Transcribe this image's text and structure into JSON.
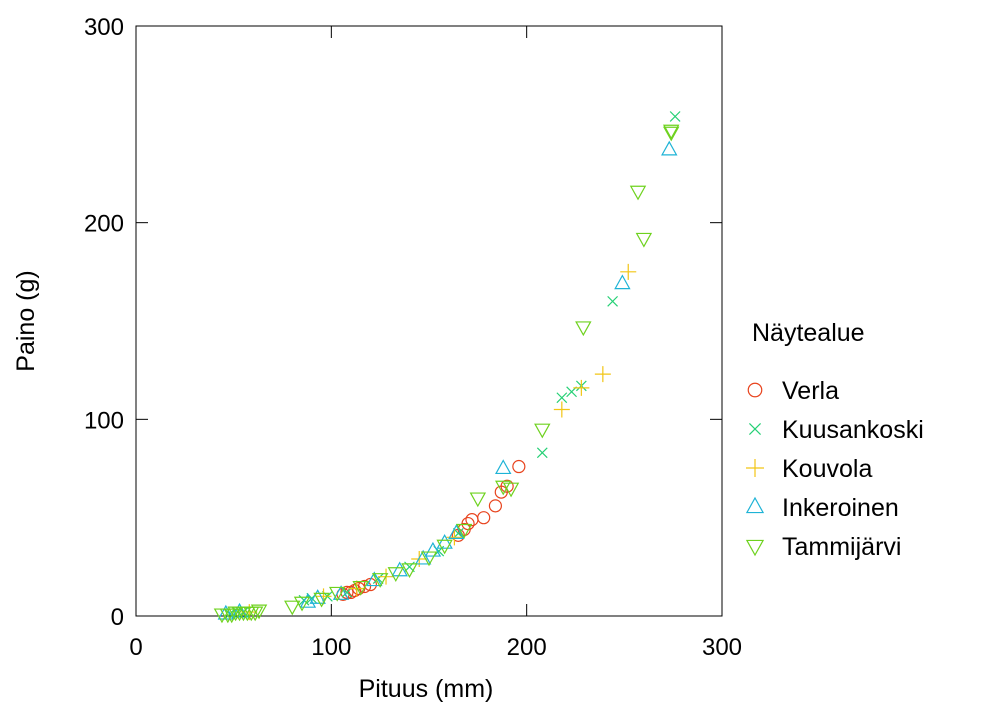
{
  "chart_data": {
    "type": "scatter",
    "title": "",
    "xlabel": "Pituus (mm)",
    "ylabel": "Paino (g)",
    "xlim": [
      0,
      300
    ],
    "ylim": [
      0,
      300
    ],
    "xticks": [
      0,
      100,
      200,
      300
    ],
    "yticks": [
      0,
      100,
      200,
      300
    ],
    "grid": false,
    "legend": {
      "title": "Näytealue",
      "placement": "right"
    },
    "series": [
      {
        "name": "Verla",
        "marker": "circle",
        "color": "#e8431d",
        "x": [
          106,
          108,
          110,
          112,
          114,
          117,
          120,
          165,
          168,
          170,
          172,
          178,
          184,
          187,
          190,
          196
        ],
        "y": [
          11,
          12,
          12,
          13,
          14,
          15,
          16,
          41,
          44,
          47,
          49,
          50,
          56,
          63,
          66,
          76
        ]
      },
      {
        "name": "Kuusankoski",
        "marker": "x",
        "color": "#25d075",
        "x": [
          48,
          52,
          55,
          86,
          90,
          98,
          108,
          124,
          140,
          155,
          165,
          208,
          218,
          223,
          228,
          244,
          276
        ],
        "y": [
          1,
          2,
          2,
          8,
          9,
          10,
          12,
          19,
          25,
          33,
          42,
          83,
          111,
          114,
          117,
          160,
          254
        ]
      },
      {
        "name": "Kouvola",
        "marker": "plus",
        "color": "#f2c514",
        "x": [
          58,
          96,
          113,
          128,
          145,
          163,
          218,
          228,
          239,
          252
        ],
        "y": [
          2,
          10,
          14,
          20,
          29,
          40,
          105,
          116,
          123,
          175
        ]
      },
      {
        "name": "Inkeroinen",
        "marker": "triangle-up",
        "color": "#1eb3d6",
        "x": [
          46,
          53,
          88,
          93,
          105,
          122,
          135,
          147,
          152,
          158,
          164,
          188,
          249,
          273
        ],
        "y": [
          1,
          2,
          7,
          9,
          11,
          18,
          23,
          29,
          33,
          37,
          42,
          75,
          169,
          237
        ]
      },
      {
        "name": "Tammijärvi",
        "marker": "triangle-down",
        "color": "#6ed21e",
        "x": [
          44,
          47,
          49,
          51,
          53,
          55,
          57,
          59,
          61,
          63,
          80,
          85,
          95,
          103,
          115,
          125,
          133,
          140,
          150,
          158,
          168,
          175,
          188,
          192,
          208,
          229,
          257,
          260,
          274,
          274
        ],
        "y": [
          1,
          1,
          1,
          2,
          2,
          2,
          2,
          2,
          2,
          3,
          5,
          7,
          9,
          12,
          15,
          19,
          22,
          24,
          30,
          36,
          44,
          60,
          66,
          65,
          95,
          147,
          216,
          192,
          247,
          246
        ]
      }
    ]
  }
}
